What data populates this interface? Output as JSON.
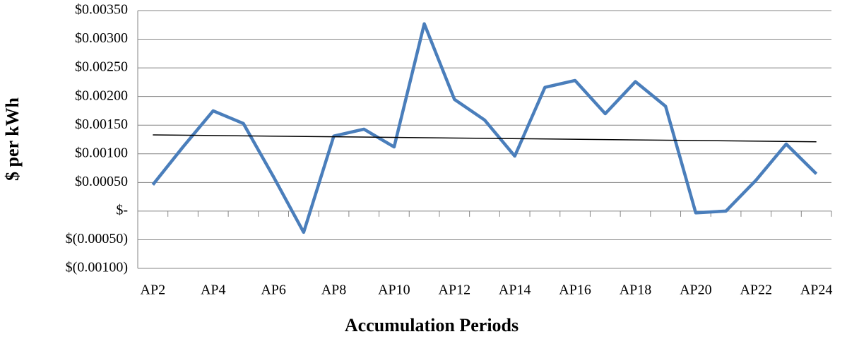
{
  "chart_data": {
    "type": "line",
    "x_label": "Accumulation Periods",
    "y_label": "$ per kWh",
    "categories": [
      "AP2",
      null,
      "AP4",
      null,
      "AP6",
      null,
      "AP8",
      null,
      "AP10",
      null,
      "AP12",
      null,
      "AP14",
      null,
      "AP16",
      null,
      "AP18",
      null,
      "AP20",
      null,
      "AP22",
      null,
      "AP24"
    ],
    "series": [
      {
        "color": "#4a7ebb",
        "values": [
          0.00046,
          0.00112,
          0.00175,
          0.00153,
          0.0006,
          -0.00037,
          0.00131,
          0.00143,
          0.00112,
          0.00327,
          0.00195,
          0.00159,
          0.00096,
          0.00216,
          0.00228,
          0.0017,
          0.00226,
          0.00183,
          -3e-05,
          0.0,
          0.00054,
          0.00117,
          0.00065
        ]
      }
    ],
    "trendline": {
      "color": "#000000",
      "values": [
        0.00133,
        0.00121
      ]
    },
    "ylim": [
      -0.001,
      0.0035
    ],
    "yticks": [
      {
        "value": -0.001,
        "label": "$(0.00100)"
      },
      {
        "value": -0.0005,
        "label": "$(0.00050)"
      },
      {
        "value": 0,
        "label": "$-"
      },
      {
        "value": 0.0005,
        "label": "$0.00050"
      },
      {
        "value": 0.001,
        "label": "$0.00100"
      },
      {
        "value": 0.0015,
        "label": "$0.00150"
      },
      {
        "value": 0.002,
        "label": "$0.00200"
      },
      {
        "value": 0.0025,
        "label": "$0.00250"
      },
      {
        "value": 0.003,
        "label": "$0.00300"
      },
      {
        "value": 0.0035,
        "label": "$0.00350"
      }
    ],
    "grid": true
  }
}
